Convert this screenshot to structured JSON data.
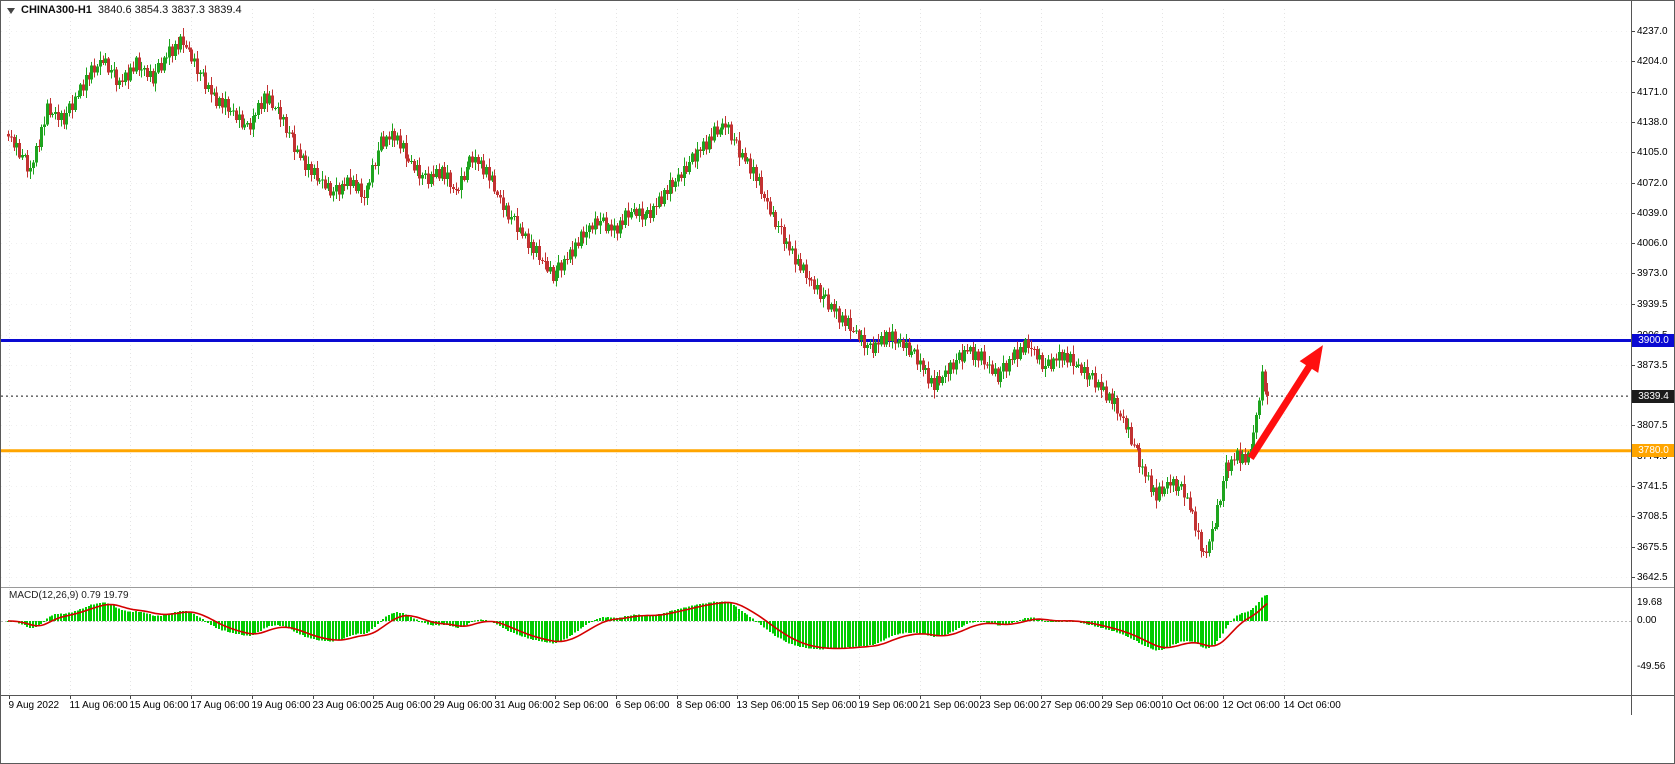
{
  "header": {
    "symbol_timeframe": "CHINA300-H1",
    "ohlc": "3840.6 3854.3 3837.3 3839.4"
  },
  "chart_data": {
    "type": "candlestick",
    "symbol": "CHINA300-",
    "timeframe": "H1",
    "ohlc_display": {
      "open": "3840.6",
      "high": "3854.3",
      "low": "3837.3",
      "close": "3839.4"
    },
    "y_axis": {
      "labels": [
        "4237.0",
        "4204.0",
        "4171.0",
        "4138.0",
        "4105.0",
        "4072.0",
        "4039.0",
        "4006.0",
        "3973.0",
        "3939.5",
        "3906.5",
        "3873.5",
        "3840.5",
        "3807.5",
        "3774.5",
        "3741.5",
        "3708.5",
        "3675.5",
        "3642.5"
      ],
      "max": 4237.0,
      "min": 3642.5
    },
    "x_axis": {
      "labels": [
        "9 Aug 2022",
        "11 Aug 06:00",
        "15 Aug 06:00",
        "17 Aug 06:00",
        "19 Aug 06:00",
        "23 Aug 06:00",
        "25 Aug 06:00",
        "29 Aug 06:00",
        "31 Aug 06:00",
        "2 Sep 06:00",
        "6 Sep 06:00",
        "8 Sep 06:00",
        "13 Sep 06:00",
        "15 Sep 06:00",
        "19 Sep 06:00",
        "21 Sep 06:00",
        "23 Sep 06:00",
        "27 Sep 06:00",
        "29 Sep 06:00",
        "10 Oct 06:00",
        "12 Oct 06:00",
        "14 Oct 06:00"
      ]
    },
    "levels": [
      {
        "name": "resistance-line",
        "price": 3900.0,
        "label": "3900.0",
        "color": "#0a0ad2",
        "style": "solid",
        "thickness": 3
      },
      {
        "name": "bid-line",
        "price": 3839.4,
        "label": "3839.4",
        "color": "#1c1c1c",
        "style": "dotted",
        "thickness": 1
      },
      {
        "name": "support-line",
        "price": 3780.0,
        "label": "3780.0",
        "color": "#ffa500",
        "style": "solid",
        "thickness": 3
      }
    ],
    "candle_count": 454,
    "price_path_anchors": [
      [
        0,
        4122
      ],
      [
        5,
        4100
      ],
      [
        8,
        4085
      ],
      [
        14,
        4150
      ],
      [
        20,
        4140
      ],
      [
        28,
        4185
      ],
      [
        34,
        4205
      ],
      [
        40,
        4180
      ],
      [
        46,
        4200
      ],
      [
        52,
        4185
      ],
      [
        58,
        4215
      ],
      [
        63,
        4225
      ],
      [
        68,
        4195
      ],
      [
        74,
        4165
      ],
      [
        80,
        4150
      ],
      [
        86,
        4130
      ],
      [
        92,
        4165
      ],
      [
        97,
        4150
      ],
      [
        104,
        4105
      ],
      [
        110,
        4080
      ],
      [
        117,
        4060
      ],
      [
        123,
        4075
      ],
      [
        128,
        4055
      ],
      [
        134,
        4115
      ],
      [
        139,
        4125
      ],
      [
        144,
        4095
      ],
      [
        150,
        4075
      ],
      [
        156,
        4085
      ],
      [
        161,
        4060
      ],
      [
        167,
        4100
      ],
      [
        172,
        4085
      ],
      [
        178,
        4045
      ],
      [
        184,
        4020
      ],
      [
        190,
        3995
      ],
      [
        196,
        3970
      ],
      [
        201,
        3990
      ],
      [
        207,
        4015
      ],
      [
        212,
        4030
      ],
      [
        218,
        4020
      ],
      [
        224,
        4040
      ],
      [
        230,
        4035
      ],
      [
        236,
        4060
      ],
      [
        242,
        4080
      ],
      [
        248,
        4105
      ],
      [
        254,
        4125
      ],
      [
        258,
        4135
      ],
      [
        263,
        4105
      ],
      [
        268,
        4085
      ],
      [
        274,
        4040
      ],
      [
        280,
        4005
      ],
      [
        286,
        3975
      ],
      [
        292,
        3950
      ],
      [
        298,
        3930
      ],
      [
        304,
        3910
      ],
      [
        310,
        3890
      ],
      [
        316,
        3905
      ],
      [
        322,
        3895
      ],
      [
        327,
        3880
      ],
      [
        333,
        3850
      ],
      [
        339,
        3870
      ],
      [
        345,
        3890
      ],
      [
        350,
        3880
      ],
      [
        356,
        3860
      ],
      [
        362,
        3885
      ],
      [
        367,
        3895
      ],
      [
        373,
        3870
      ],
      [
        379,
        3885
      ],
      [
        385,
        3870
      ],
      [
        391,
        3855
      ],
      [
        397,
        3835
      ],
      [
        403,
        3800
      ],
      [
        408,
        3760
      ],
      [
        413,
        3730
      ],
      [
        418,
        3745
      ],
      [
        423,
        3735
      ],
      [
        427,
        3700
      ],
      [
        430,
        3662
      ],
      [
        434,
        3700
      ],
      [
        438,
        3760
      ],
      [
        442,
        3775
      ],
      [
        446,
        3770
      ],
      [
        449,
        3815
      ],
      [
        451,
        3860
      ],
      [
        453,
        3839.4
      ]
    ],
    "wiggle": [
      0,
      4,
      -3,
      6,
      -5,
      2,
      7,
      -6,
      3,
      -2,
      5,
      -7,
      4,
      -4,
      8,
      -3
    ],
    "wick_pattern": [
      4,
      8,
      3,
      10,
      5,
      7,
      2,
      6,
      9,
      3
    ],
    "last_close": 3839.4,
    "colors": {
      "up": "#1ea41e",
      "down": "#c23232",
      "macd_hist": "#00cc00",
      "macd_signal": "#d40000",
      "grid": "#e4e4e4",
      "arrow": "#ff0f0f",
      "axis_text": "#000000",
      "background": "#ffffff"
    },
    "annotations": [
      {
        "type": "arrow-up",
        "from_index": 447,
        "from_price": 3772,
        "to_index": 473,
        "to_price": 3895,
        "color": "#ff0f0f"
      }
    ],
    "macd": {
      "label": "MACD(12,26,9) 0.79 19.79",
      "params": [
        12,
        26,
        9
      ],
      "axis_labels": [
        "19.68",
        "0.00",
        "-49.56"
      ],
      "max": 19.68,
      "min": -49.56
    }
  }
}
